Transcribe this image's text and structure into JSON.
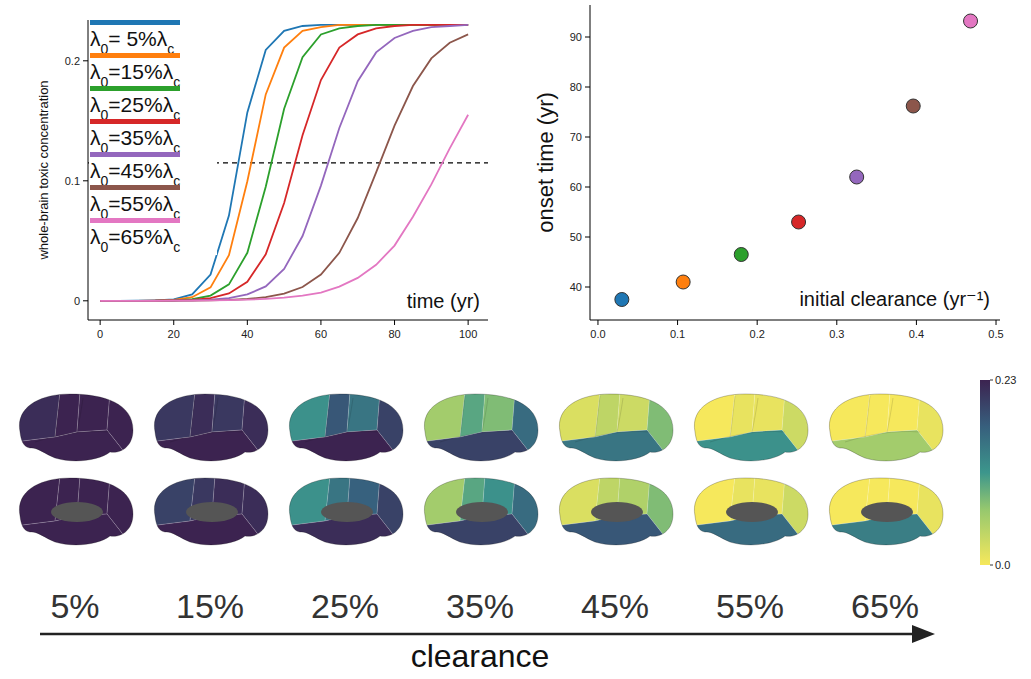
{
  "chart_data": [
    {
      "type": "line",
      "ylabel": "whole-brain toxic concentration",
      "annotation": "time (yr)",
      "x": [
        0,
        5,
        10,
        15,
        20,
        25,
        30,
        35,
        40,
        45,
        50,
        55,
        60,
        65,
        70,
        75,
        80,
        85,
        90,
        95,
        100
      ],
      "series": [
        {
          "name": "λ0= 5%λc",
          "color": "#1f77b4",
          "values": [
            0,
            0,
            0.0001,
            0.0003,
            0.0012,
            0.0053,
            0.0218,
            0.071,
            0.157,
            0.209,
            0.225,
            0.229,
            0.23,
            0.23,
            0.23,
            0.23,
            0.23,
            0.23,
            0.23,
            0.23,
            0.23
          ]
        },
        {
          "name": "λ0=15%λc",
          "color": "#ff7f0e",
          "values": [
            0,
            0,
            0,
            0.0001,
            0.0008,
            0.003,
            0.0112,
            0.038,
            0.0996,
            0.172,
            0.211,
            0.225,
            0.228,
            0.23,
            0.23,
            0.23,
            0.23,
            0.23,
            0.23,
            0.23,
            0.23
          ]
        },
        {
          "name": "λ0=25%λc",
          "color": "#2ca02c",
          "values": [
            0,
            0,
            0,
            0.0001,
            0.0004,
            0.0013,
            0.0043,
            0.0137,
            0.04,
            0.095,
            0.16,
            0.203,
            0.222,
            0.227,
            0.229,
            0.23,
            0.23,
            0.23,
            0.23,
            0.23,
            0.23
          ]
        },
        {
          "name": "λ0=35%λc",
          "color": "#d62728",
          "values": [
            0,
            0,
            0,
            0.0001,
            0.0003,
            0.0008,
            0.0023,
            0.0061,
            0.0159,
            0.0387,
            0.0815,
            0.138,
            0.184,
            0.211,
            0.222,
            0.227,
            0.229,
            0.23,
            0.23,
            0.23,
            0.23
          ]
        },
        {
          "name": "λ0=45%λc",
          "color": "#9467bd",
          "values": [
            0,
            0,
            0,
            0.0001,
            0.0002,
            0.0004,
            0.001,
            0.0023,
            0.0053,
            0.012,
            0.0265,
            0.054,
            0.096,
            0.144,
            0.183,
            0.207,
            0.219,
            0.225,
            0.228,
            0.229,
            0.23
          ]
        },
        {
          "name": "λ0=55%λc",
          "color": "#8c564b",
          "values": [
            0,
            0,
            0,
            0,
            0.0001,
            0.0002,
            0.0004,
            0.0007,
            0.0015,
            0.003,
            0.0059,
            0.0115,
            0.0219,
            0.04,
            0.069,
            0.107,
            0.146,
            0.179,
            0.202,
            0.215,
            0.222
          ]
        },
        {
          "name": "λ0=65%λc",
          "color": "#e377c2",
          "values": [
            0,
            0,
            0,
            0,
            0.0001,
            0.0002,
            0.0003,
            0.0006,
            0.0009,
            0.0016,
            0.0026,
            0.0043,
            0.0069,
            0.0118,
            0.0191,
            0.03,
            0.046,
            0.07,
            0.097,
            0.127,
            0.155
          ]
        }
      ],
      "threshold": 0.115,
      "xlim": [
        -3.3,
        105.4
      ],
      "xticks": [
        0,
        20,
        40,
        60,
        80,
        100
      ],
      "ylim": [
        -0.016,
        0.234
      ],
      "yticks": [
        0,
        0.1,
        0.2
      ],
      "legend": "top-left",
      "grid": false
    },
    {
      "type": "scatter",
      "ylabel": "onset time (yr)",
      "annotation": "initial clearance (yr⁻¹)",
      "x": [
        0.03,
        0.107,
        0.18,
        0.252,
        0.325,
        0.396,
        0.468
      ],
      "values": [
        37.5,
        41,
        46.5,
        53,
        62,
        76.2,
        93.2
      ],
      "colors": [
        "#1f77b4",
        "#ff7f0e",
        "#2ca02c",
        "#d62728",
        "#9467bd",
        "#8c564b",
        "#e377c2"
      ],
      "xlim": [
        -0.01,
        0.505
      ],
      "xticks": [
        {
          "value": 0,
          "label": "0.0"
        },
        0.1,
        0.2,
        0.3,
        0.4,
        0.5
      ],
      "ylim": [
        33.4,
        96.4
      ],
      "yticks": [
        40,
        50,
        60,
        70,
        80,
        90
      ],
      "grid": false
    },
    {
      "type": "heatmap",
      "categories": [
        "5%",
        "15%",
        "25%",
        "35%",
        "45%",
        "55%",
        "65%"
      ],
      "xlabel": "clearance",
      "lateral": [
        [
          0.22,
          0.23,
          0.23,
          0.23,
          0.23
        ],
        [
          0.21,
          0.22,
          0.21,
          0.22,
          0.23
        ],
        [
          0.12,
          0.18,
          0.15,
          0.2,
          0.23
        ],
        [
          0.06,
          0.1,
          0.08,
          0.16,
          0.2
        ],
        [
          0.02,
          0.04,
          0.03,
          0.08,
          0.15
        ],
        [
          0,
          0.01,
          0.01,
          0.03,
          0.12
        ],
        [
          0,
          0,
          0,
          0.01,
          0.06
        ]
      ],
      "medial": [
        [
          0.23,
          0.23,
          0.23,
          0.23,
          0.23
        ],
        [
          0.2,
          0.21,
          0.22,
          0.22,
          0.23
        ],
        [
          0.12,
          0.15,
          0.17,
          0.2,
          0.22
        ],
        [
          0.06,
          0.1,
          0.12,
          0.16,
          0.2
        ],
        [
          0.02,
          0.04,
          0.05,
          0.08,
          0.18
        ],
        [
          0,
          0.01,
          0.01,
          0.03,
          0.16
        ],
        [
          0,
          0,
          0,
          0.01,
          0.14
        ]
      ],
      "colorbar_range": [
        0,
        0.23
      ],
      "colorbar_ticks": [
        0.23,
        {
          "value": 0,
          "label": "0.0"
        }
      ]
    }
  ]
}
